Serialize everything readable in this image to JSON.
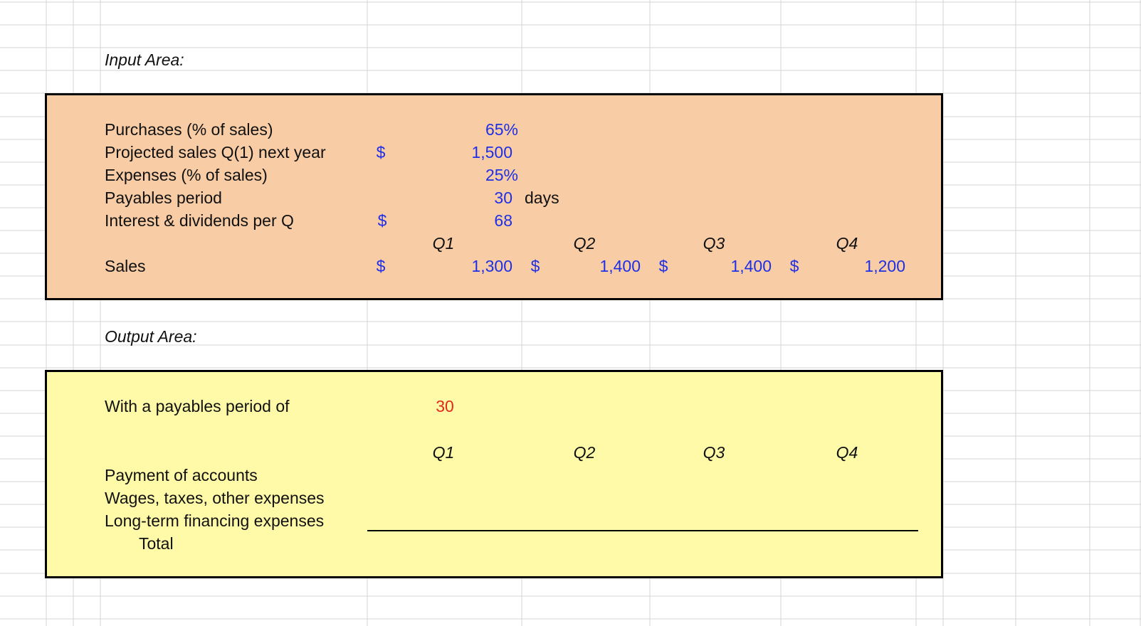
{
  "input_area": {
    "title": "Input Area:",
    "purchases": {
      "label": "Purchases (% of sales)",
      "value": "65%"
    },
    "projected_sales": {
      "label": "Projected sales Q(1) next year",
      "currency": "$",
      "value": "1,500"
    },
    "expenses": {
      "label": "Expenses (% of sales)",
      "value": "25%"
    },
    "payables_period": {
      "label": "Payables period",
      "value": "30",
      "unit": "days"
    },
    "interest_dividends": {
      "label": "Interest & dividends per Q",
      "currency": "$",
      "value": "68"
    },
    "quarter_headers": [
      "Q1",
      "Q2",
      "Q3",
      "Q4"
    ],
    "sales": {
      "label": "Sales",
      "currency": "$",
      "values": [
        "1,300",
        "1,400",
        "1,400",
        "1,200"
      ]
    }
  },
  "output_area": {
    "title": "Output Area:",
    "payables_row": {
      "label": "With a payables period of",
      "value": "30"
    },
    "quarter_headers": [
      "Q1",
      "Q2",
      "Q3",
      "Q4"
    ],
    "rows": [
      "Payment of accounts",
      "Wages, taxes, other expenses",
      "Long-term financing expenses"
    ],
    "total_label": "Total"
  },
  "colors": {
    "input_fill": "#f8cca4",
    "output_fill": "#fffaa8",
    "input_value": "#1f2fe6",
    "output_value": "#e02a1c",
    "gridline": "#d4d4d4"
  }
}
